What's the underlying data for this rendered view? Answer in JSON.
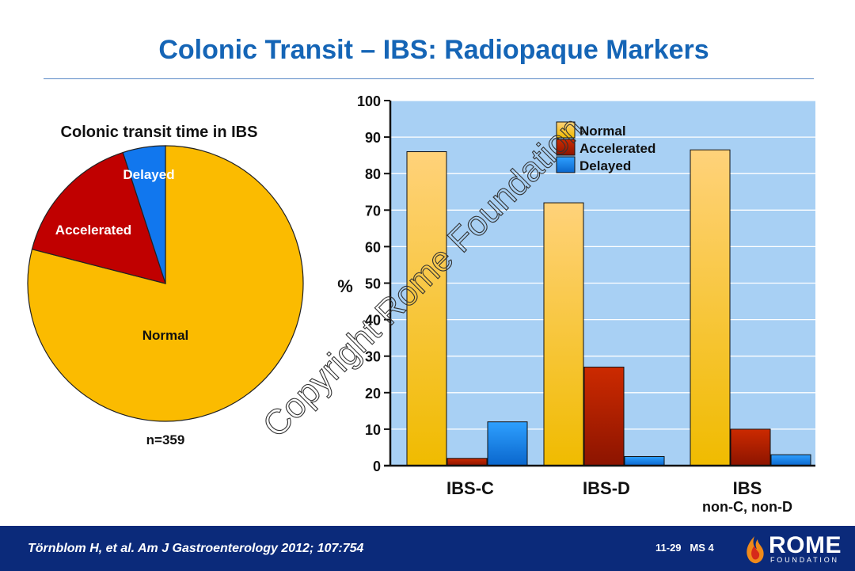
{
  "slide": {
    "title": "Colonic Transit – IBS: Radiopaque Markers",
    "watermark": "Copyright Rome Foundation",
    "footer": {
      "citation": "Törnblom H, et al. Am J Gastroenterology 2012; 107:754",
      "slide_code": "11-29   MS 4",
      "logo_text": "ROME",
      "logo_subtext": "FOUNDATION"
    }
  },
  "chart_data": [
    {
      "type": "pie",
      "title": "Colonic transit time in IBS",
      "labels": [
        "Normal",
        "Accelerated",
        "Delayed"
      ],
      "values": [
        79,
        16,
        5
      ],
      "colors": [
        "#fbbb00",
        "#c00000",
        "#1177ee"
      ],
      "label_colors": [
        "#111111",
        "#ffffff",
        "#ffffff"
      ],
      "note": "n=359"
    },
    {
      "type": "bar",
      "categories": [
        [
          "IBS-C"
        ],
        [
          "IBS-D"
        ],
        [
          "IBS",
          "non-C, non-D"
        ]
      ],
      "series": [
        {
          "name": "Normal",
          "values": [
            86,
            72,
            86.5
          ],
          "color": "#f5c000"
        },
        {
          "name": "Accelerated",
          "values": [
            2,
            27,
            10
          ],
          "color": "#b81c00"
        },
        {
          "name": "Delayed",
          "values": [
            12,
            2.5,
            3
          ],
          "color": "#1188ee"
        }
      ],
      "ylabel": "%",
      "ylim": [
        0,
        100
      ],
      "yticks": [
        0,
        10,
        20,
        30,
        40,
        50,
        60,
        70,
        80,
        90,
        100
      ],
      "grid": true,
      "legend_position": "top-center"
    }
  ]
}
